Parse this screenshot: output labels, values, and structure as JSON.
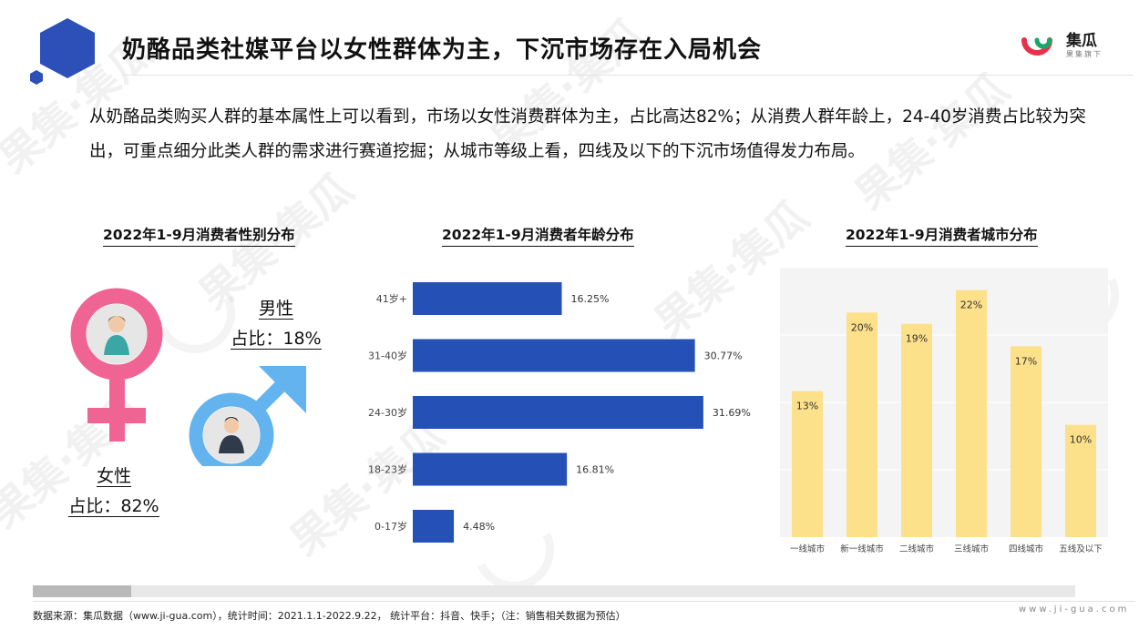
{
  "header": {
    "title": "奶酪品类社媒平台以女性群体为主，下沉市场存在入局机会",
    "brand_name": "集瓜",
    "brand_sub": "果集旗下"
  },
  "description": "从奶酪品类购买人群的基本属性上可以看到，市场以女性消费群体为主，占比高达82%；从消费人群年龄上，24-40岁消费占比较为突出，可重点细分此类人群的需求进行赛道挖掘；从城市等级上看，四线及以下的下沉市场值得发力布局。",
  "watermark": "果集·集瓜",
  "colors": {
    "brand_blue": "#2d4fb8",
    "female_pink": "#f06494",
    "male_blue": "#63b3ef",
    "bar_blue": "#2550b5",
    "bar_yellow": "#fde08a"
  },
  "gender": {
    "title": "2022年1-9月消费者性别分布",
    "female": {
      "label": "女性",
      "share": "占比：82%",
      "icon": "female-symbol-icon"
    },
    "male": {
      "label": "男性",
      "share": "占比：18%",
      "icon": "male-symbol-icon"
    }
  },
  "chart_data": [
    {
      "type": "bar",
      "orientation": "horizontal",
      "title": "2022年1-9月消费者年龄分布",
      "categories": [
        "41岁+",
        "31-40岁",
        "24-30岁",
        "18-23岁",
        "0-17岁"
      ],
      "values": [
        16.25,
        30.77,
        31.69,
        16.81,
        4.48
      ],
      "labels": [
        "16.25%",
        "30.77%",
        "31.69%",
        "16.81%",
        "4.48%"
      ],
      "xlim": [
        0,
        32
      ]
    },
    {
      "type": "bar",
      "orientation": "vertical",
      "title": "2022年1-9月消费者城市分布",
      "categories": [
        "一线城市",
        "新一线城市",
        "二线城市",
        "三线城市",
        "四线城市",
        "五线及以下"
      ],
      "values": [
        13,
        20,
        19,
        22,
        17,
        10
      ],
      "labels": [
        "13%",
        "20%",
        "19%",
        "22%",
        "17%",
        "10%"
      ],
      "ylim": [
        0,
        24
      ],
      "grid": true
    }
  ],
  "footer": {
    "source": "数据来源：集瓜数据（www.ji-gua.com），统计时间：2021.1.1-2022.9.22， 统计平台：抖音、快手；（注：销售相关数据为预估）",
    "site": "www.ji-gua.com"
  }
}
